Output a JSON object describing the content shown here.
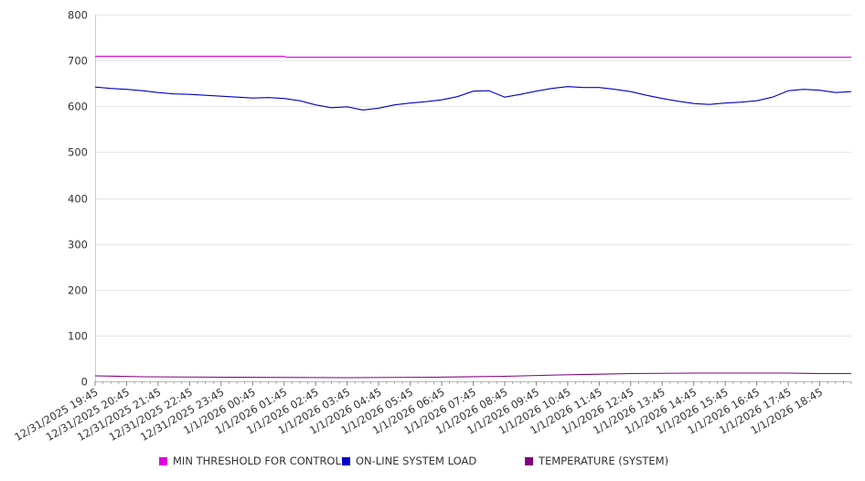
{
  "chart_data": {
    "type": "line",
    "title": "",
    "xlabel": "",
    "ylabel": "",
    "ylim": [
      0,
      800
    ],
    "yticks": [
      0,
      100,
      200,
      300,
      400,
      500,
      600,
      700,
      800
    ],
    "grid": true,
    "legend_position": "bottom",
    "xtick_labels": [
      "12/31/2025 19:45",
      "12/31/2025 20:45",
      "12/31/2025 21:45",
      "12/31/2025 22:45",
      "12/31/2025 23:45",
      "1/1/2026 00:45",
      "1/1/2026 01:45",
      "1/1/2026 02:45",
      "1/1/2026 03:45",
      "1/1/2026 04:45",
      "1/1/2026 05:45",
      "1/1/2026 06:45",
      "1/1/2026 07:45",
      "1/1/2026 08:45",
      "1/1/2026 09:45",
      "1/1/2026 10:45",
      "1/1/2026 11:45",
      "1/1/2026 12:45",
      "1/1/2026 13:45",
      "1/1/2026 14:45",
      "1/1/2026 15:45",
      "1/1/2026 16:45",
      "1/1/2026 17:45",
      "1/1/2026 18:45"
    ],
    "series": [
      {
        "name": "MIN THRESHOLD FOR CONTROL",
        "color": "#e000e0",
        "x": [
          "12/31/2025 19:45",
          "1/1/2026 01:45",
          "1/1/2026 01:50",
          "1/1/2026 19:45"
        ],
        "values": [
          709,
          709,
          707,
          707
        ]
      },
      {
        "name": "ON-LINE SYSTEM LOAD",
        "color": "#0000cc",
        "x": [
          "12/31/2025 19:45",
          "12/31/2025 20:15",
          "12/31/2025 20:45",
          "12/31/2025 21:15",
          "12/31/2025 21:45",
          "12/31/2025 22:15",
          "12/31/2025 22:45",
          "12/31/2025 23:15",
          "12/31/2025 23:45",
          "1/1/2026 00:15",
          "1/1/2026 00:45",
          "1/1/2026 01:15",
          "1/1/2026 01:45",
          "1/1/2026 02:15",
          "1/1/2026 02:45",
          "1/1/2026 03:15",
          "1/1/2026 03:45",
          "1/1/2026 04:15",
          "1/1/2026 04:45",
          "1/1/2026 05:15",
          "1/1/2026 05:45",
          "1/1/2026 06:15",
          "1/1/2026 06:45",
          "1/1/2026 07:15",
          "1/1/2026 07:30",
          "1/1/2026 07:45",
          "1/1/2026 08:15",
          "1/1/2026 08:45",
          "1/1/2026 09:15",
          "1/1/2026 09:45",
          "1/1/2026 10:15",
          "1/1/2026 10:45",
          "1/1/2026 11:15",
          "1/1/2026 11:45",
          "1/1/2026 12:15",
          "1/1/2026 12:45",
          "1/1/2026 13:15",
          "1/1/2026 13:45",
          "1/1/2026 14:15",
          "1/1/2026 14:45",
          "1/1/2026 15:15",
          "1/1/2026 15:45",
          "1/1/2026 16:15",
          "1/1/2026 16:45",
          "1/1/2026 17:15",
          "1/1/2026 17:45",
          "1/1/2026 18:15",
          "1/1/2026 18:45",
          "1/1/2026 19:15",
          "1/1/2026 19:45"
        ],
        "values": [
          642,
          639,
          637,
          634,
          630,
          627,
          626,
          624,
          622,
          620,
          618,
          619,
          617,
          612,
          603,
          597,
          599,
          592,
          596,
          603,
          607,
          610,
          614,
          621,
          627,
          633,
          634,
          620,
          626,
          633,
          639,
          643,
          641,
          641,
          637,
          632,
          624,
          617,
          611,
          606,
          604,
          607,
          609,
          612,
          620,
          634,
          637,
          635,
          630,
          632
        ]
      },
      {
        "name": "TEMPERATURE (SYSTEM)",
        "color": "#800080",
        "x": [
          "12/31/2025 19:45",
          "12/31/2025 21:15",
          "12/31/2025 23:45",
          "1/1/2026 03:45",
          "1/1/2026 06:30",
          "1/1/2026 08:45",
          "1/1/2026 10:30",
          "1/1/2026 12:45",
          "1/1/2026 14:45",
          "1/1/2026 17:45",
          "1/1/2026 18:45",
          "1/1/2026 19:45"
        ],
        "values": [
          12,
          10,
          9,
          8,
          9,
          11,
          14,
          17,
          18,
          18,
          17,
          17
        ]
      }
    ]
  }
}
